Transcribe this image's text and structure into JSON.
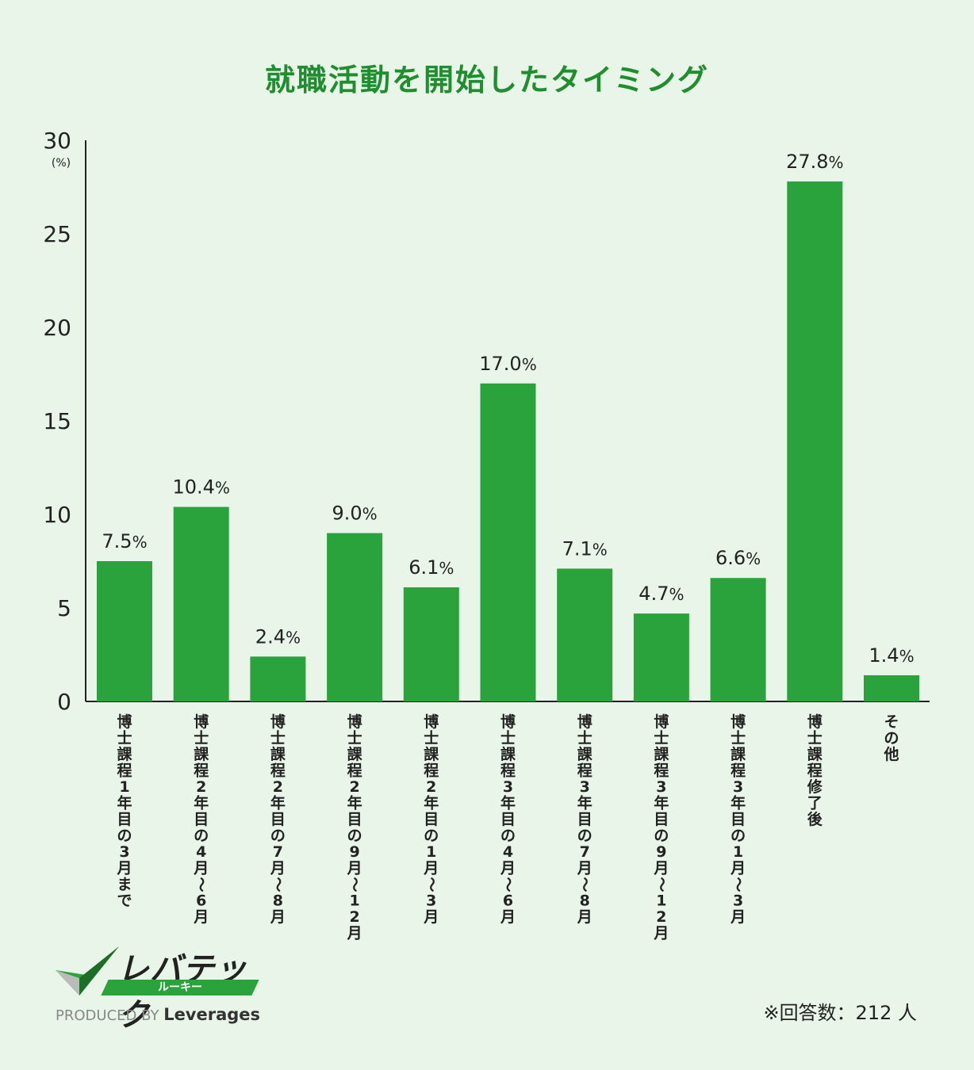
{
  "chart_data": {
    "type": "bar",
    "title": "就職活動を開始したタイミング",
    "ylabel": "(%)",
    "ylim": [
      0,
      30
    ],
    "yticks": [
      0,
      5,
      10,
      15,
      20,
      25,
      30
    ],
    "bar_color": "#2ba33c",
    "categories": [
      "博士課程1年目の3月まで",
      "博士課程2年目の4月~6月",
      "博士課程2年目の7月~8月",
      "博士課程2年目の9月~12月",
      "博士課程2年目の1月~3月",
      "博士課程3年目の4月~6月",
      "博士課程3年目の7月~8月",
      "博士課程3年目の9月~12月",
      "博士課程3年目の1月~3月",
      "博士課程修了後",
      "その他"
    ],
    "values": [
      7.5,
      10.4,
      2.4,
      9.0,
      6.1,
      17.0,
      7.1,
      4.7,
      6.6,
      27.8,
      1.4
    ],
    "value_labels": [
      "7.5",
      "10.4",
      "2.4",
      "9.0",
      "6.1",
      "17.0",
      "7.1",
      "4.7",
      "6.6",
      "27.8",
      "1.4"
    ],
    "value_suffix": "%"
  },
  "logo": {
    "name": "レバテック",
    "sub": "ルーキー",
    "produced_by": "PRODUCED BY",
    "company": "Leverages"
  },
  "footnote": "※回答数：212 人",
  "colors": {
    "accent": "#1f8e2f",
    "background": "#e8f5e8"
  }
}
